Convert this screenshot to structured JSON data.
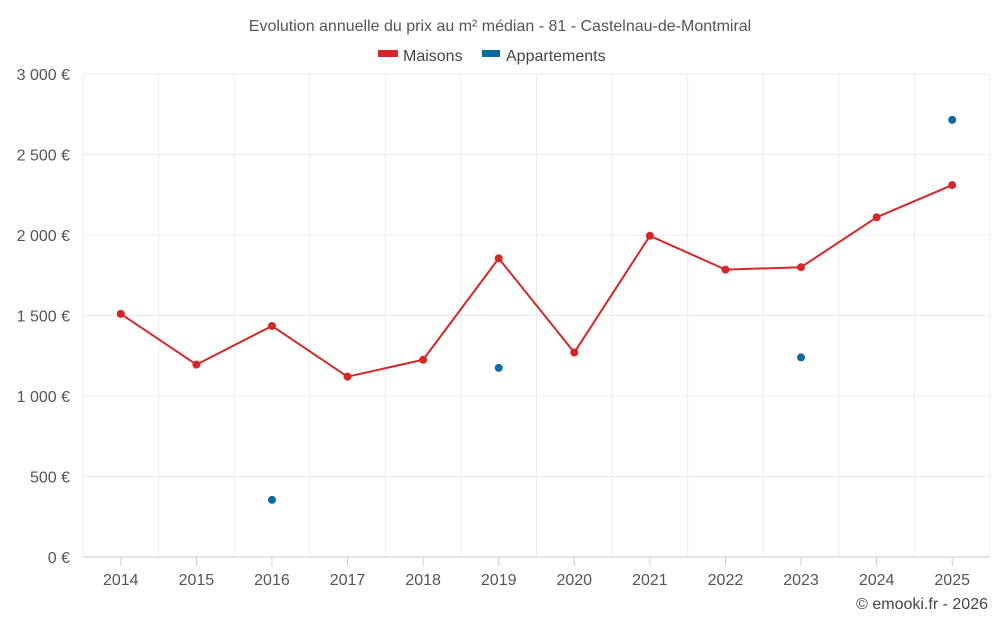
{
  "chart_data": {
    "type": "line",
    "title": "Evolution annuelle du prix au m² médian - 81 - Castelnau-de-Montmiral",
    "categories": [
      "2014",
      "2015",
      "2016",
      "2017",
      "2018",
      "2019",
      "2020",
      "2021",
      "2022",
      "2023",
      "2024",
      "2025"
    ],
    "series": [
      {
        "name": "Maisons",
        "color": "#d62728",
        "render": "line",
        "values": [
          1510,
          1195,
          1435,
          1120,
          1225,
          1855,
          1270,
          1995,
          1785,
          1800,
          2110,
          2310
        ]
      },
      {
        "name": "Appartements",
        "color": "#0a6aa1",
        "render": "points",
        "values": [
          null,
          null,
          355,
          null,
          null,
          1175,
          null,
          null,
          null,
          1240,
          null,
          2715
        ]
      }
    ],
    "ylim": [
      0,
      3000
    ],
    "yticks": [
      0,
      500,
      1000,
      1500,
      2000,
      2500,
      3000
    ],
    "ytick_labels": [
      "0 €",
      "500 €",
      "1 000 €",
      "1 500 €",
      "2 000 €",
      "2 500 €",
      "3 000 €"
    ],
    "xlabel": "",
    "ylabel": "",
    "grid": true,
    "legend_position": "top-center"
  },
  "credit": "© emooki.fr - 2026"
}
